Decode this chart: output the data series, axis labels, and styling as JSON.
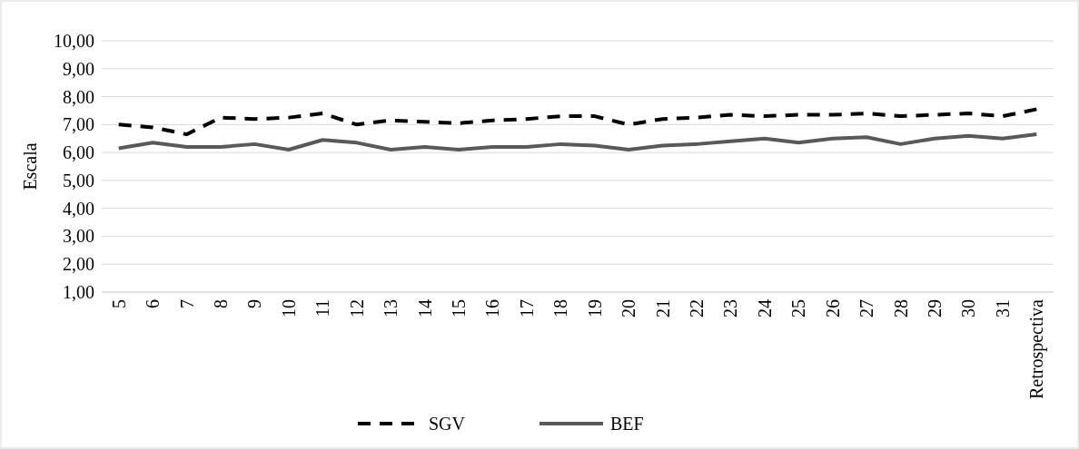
{
  "chart_data": {
    "type": "line",
    "ylabel": "Escala",
    "categories": [
      "5",
      "6",
      "7",
      "8",
      "9",
      "10",
      "11",
      "12",
      "13",
      "14",
      "15",
      "16",
      "17",
      "18",
      "19",
      "20",
      "21",
      "22",
      "23",
      "24",
      "25",
      "26",
      "27",
      "28",
      "29",
      "30",
      "31",
      "Retrospectiva"
    ],
    "series": [
      {
        "name": "SGV",
        "color": "#000000",
        "line_style": "dashed",
        "values": [
          7.0,
          6.9,
          6.65,
          7.25,
          7.2,
          7.25,
          7.4,
          7.0,
          7.15,
          7.1,
          7.05,
          7.15,
          7.2,
          7.3,
          7.3,
          7.0,
          7.2,
          7.25,
          7.35,
          7.3,
          7.35,
          7.35,
          7.4,
          7.3,
          7.35,
          7.4,
          7.3,
          7.55
        ]
      },
      {
        "name": "BEF",
        "color": "#595959",
        "line_style": "solid",
        "values": [
          6.15,
          6.35,
          6.2,
          6.2,
          6.3,
          6.1,
          6.45,
          6.35,
          6.1,
          6.2,
          6.1,
          6.2,
          6.2,
          6.3,
          6.25,
          6.1,
          6.25,
          6.3,
          6.4,
          6.5,
          6.35,
          6.5,
          6.55,
          6.3,
          6.5,
          6.6,
          6.5,
          6.65
        ]
      }
    ],
    "ylim": [
      1,
      10
    ],
    "yticks": [
      {
        "value": 1,
        "label": "1,00"
      },
      {
        "value": 2,
        "label": "2,00"
      },
      {
        "value": 3,
        "label": "3,00"
      },
      {
        "value": 4,
        "label": "4,00"
      },
      {
        "value": 5,
        "label": "5,00"
      },
      {
        "value": 6,
        "label": "6,00"
      },
      {
        "value": 7,
        "label": "7,00"
      },
      {
        "value": 8,
        "label": "8,00"
      },
      {
        "value": 9,
        "label": "9,00"
      },
      {
        "value": 10,
        "label": "10,00"
      }
    ],
    "grid": "y",
    "legend": "bottom",
    "marker": "none"
  }
}
